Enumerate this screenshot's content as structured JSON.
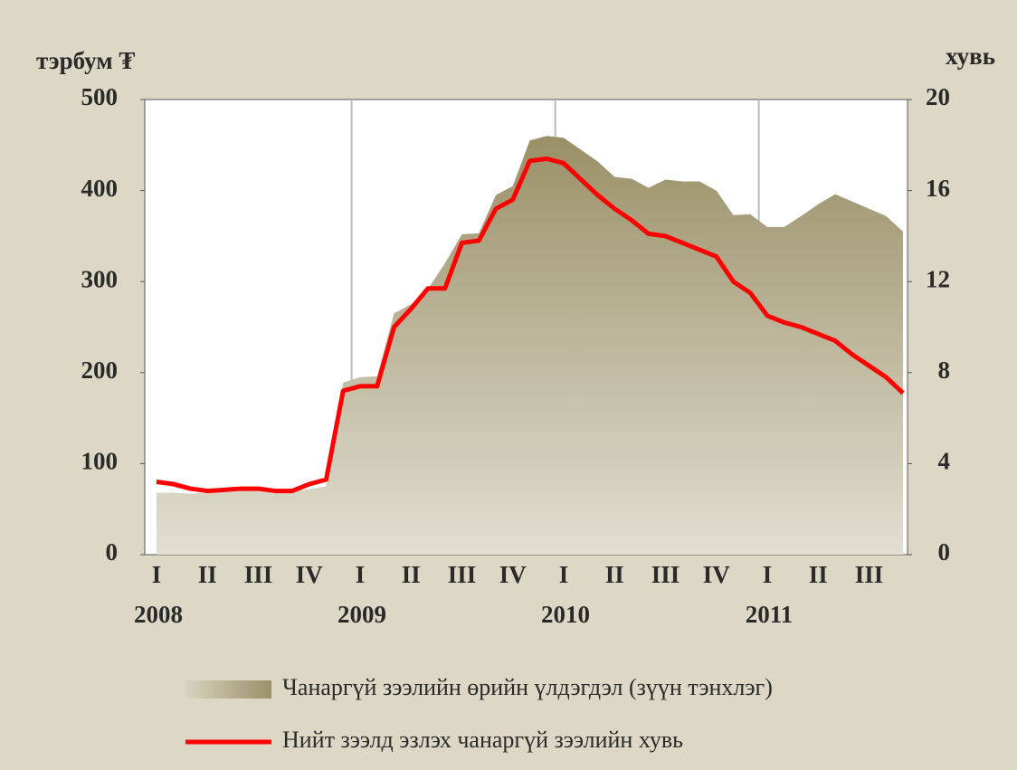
{
  "chart_data": {
    "type": "area",
    "y_label": "тэрбум ₮",
    "y2_label": "хувь",
    "categories": [
      "I",
      null,
      null,
      "II",
      null,
      null,
      "III",
      null,
      null,
      "IV",
      null,
      null,
      "I",
      null,
      null,
      "II",
      null,
      null,
      "III",
      null,
      null,
      "IV",
      null,
      null,
      "I",
      null,
      null,
      "II",
      null,
      null,
      "III",
      null,
      null,
      "IV",
      null,
      null,
      "I",
      null,
      null,
      "II",
      null,
      null,
      "III",
      null,
      null
    ],
    "years": [
      "2008",
      "2009",
      "2010",
      "2011"
    ],
    "series": [
      {
        "name": "Чанаргүй зээлийн өрийн үлдэгдэл (зүүн тэнхлэг)",
        "type": "area",
        "color": "#9a9068",
        "values": [
          68,
          68,
          67,
          68,
          69,
          70,
          71,
          70,
          70,
          72,
          75,
          189,
          195,
          196,
          265,
          275,
          292,
          320,
          352,
          353,
          395,
          405,
          455,
          460,
          458,
          445,
          432,
          415,
          413,
          403,
          412,
          410,
          410,
          400,
          373,
          374,
          360,
          360,
          372,
          385,
          396,
          388,
          380,
          372,
          355
        ]
      },
      {
        "name": "Нийт зээлд эзлэх  чанаргүй зээлийн хувь",
        "type": "line",
        "axis": "y2",
        "color": "#ff0000",
        "values": [
          3.2,
          3.1,
          2.9,
          2.8,
          2.85,
          2.9,
          2.9,
          2.8,
          2.8,
          3.1,
          3.3,
          7.2,
          7.4,
          7.4,
          10.0,
          10.8,
          11.7,
          11.7,
          13.7,
          13.8,
          15.2,
          15.6,
          17.3,
          17.4,
          17.2,
          16.5,
          15.8,
          15.2,
          14.7,
          14.1,
          14.0,
          13.7,
          13.4,
          13.1,
          12.0,
          11.5,
          10.5,
          10.2,
          10.0,
          9.7,
          9.4,
          8.8,
          8.3,
          7.8,
          7.1
        ]
      }
    ],
    "ylim": [
      0,
      500
    ],
    "yticks": [
      0,
      100,
      200,
      300,
      400,
      500
    ],
    "y2lim": [
      0,
      20
    ],
    "y2ticks": [
      0,
      4,
      8,
      12,
      16,
      20
    ],
    "grid": "year"
  }
}
